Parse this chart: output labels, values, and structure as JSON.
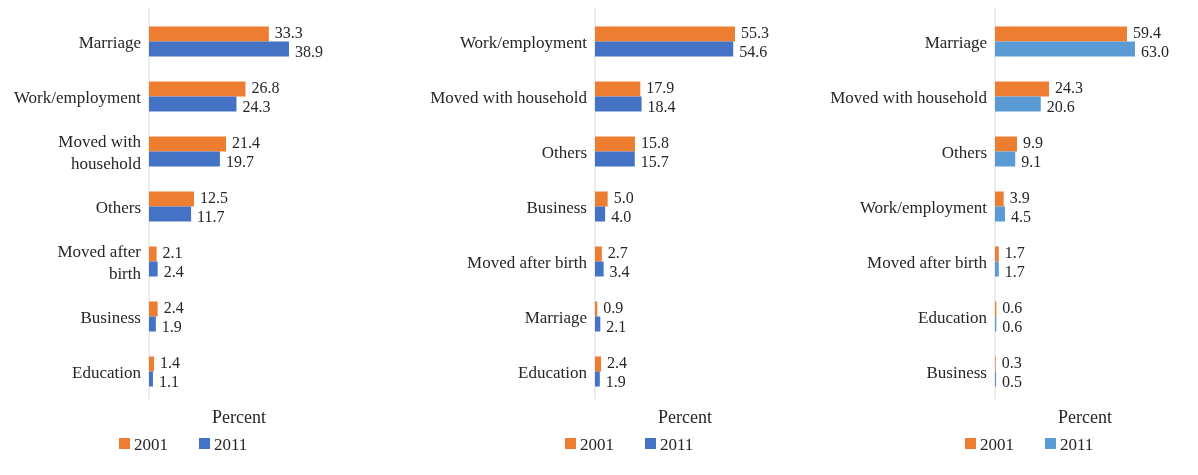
{
  "chart_data": [
    {
      "type": "bar",
      "orientation": "horizontal",
      "xlabel": "Percent",
      "categories": [
        "Marriage",
        "Work/employment",
        "Moved with household",
        "Others",
        "Moved after birth",
        "Business",
        "Education"
      ],
      "series": [
        {
          "name": "2001",
          "color": "#ed7d31",
          "values": [
            33.3,
            26.8,
            21.4,
            12.5,
            2.1,
            2.4,
            1.4
          ],
          "value_labels": [
            "33.3",
            "26.8",
            "21.4",
            "12.5",
            "2.1",
            "2.4",
            "1.4"
          ]
        },
        {
          "name": "2011",
          "color": "#4472c4",
          "values": [
            38.9,
            24.3,
            19.7,
            11.7,
            2.4,
            1.9,
            1.1
          ],
          "value_labels": [
            "38.9",
            "24.3",
            "19.7",
            "11.7",
            "2.4",
            "1.9",
            "1.1"
          ]
        }
      ],
      "legend": "bottom"
    },
    {
      "type": "bar",
      "orientation": "horizontal",
      "xlabel": "Percent",
      "categories": [
        "Work/employment",
        "Moved with household",
        "Others",
        "Business",
        "Moved after birth",
        "Marriage",
        "Education"
      ],
      "series": [
        {
          "name": "2001",
          "color": "#ed7d31",
          "values": [
            55.3,
            17.9,
            15.8,
            5,
            2.7,
            0.9,
            2.4
          ],
          "value_labels": [
            "55.3",
            "17.9",
            "15.8",
            "5.0",
            "2.7",
            "0.9",
            "2.4"
          ]
        },
        {
          "name": "2011",
          "color": "#4472c4",
          "values": [
            54.6,
            18.4,
            15.7,
            4,
            3.4,
            2.1,
            1.9
          ],
          "value_labels": [
            "54.6",
            "18.4",
            "15.7",
            "4.0",
            "3.4",
            "2.1",
            "1.9"
          ]
        }
      ],
      "legend": "bottom"
    },
    {
      "type": "bar",
      "orientation": "horizontal",
      "xlabel": "Percent",
      "categories": [
        "Marriage",
        "Moved with household",
        "Others",
        "Work/employment",
        "Moved after birth",
        "Education",
        "Business"
      ],
      "series": [
        {
          "name": "2001",
          "color": "#ed7d31",
          "values": [
            59.4,
            24.3,
            9.9,
            3.9,
            1.7,
            0.6,
            0.3
          ],
          "value_labels": [
            "59.4",
            "24.3",
            "9.9",
            "3.9",
            "1.7",
            "0.6",
            "0.3"
          ]
        },
        {
          "name": "2011",
          "color": "#5b9bd5",
          "values": [
            63,
            20.6,
            9.1,
            4.5,
            1.7,
            0.6,
            0.5
          ],
          "value_labels": [
            "63.0",
            "20.6",
            "9.1",
            "4.5",
            "1.7",
            "0.6",
            "0.5"
          ]
        }
      ],
      "legend": "bottom"
    }
  ]
}
